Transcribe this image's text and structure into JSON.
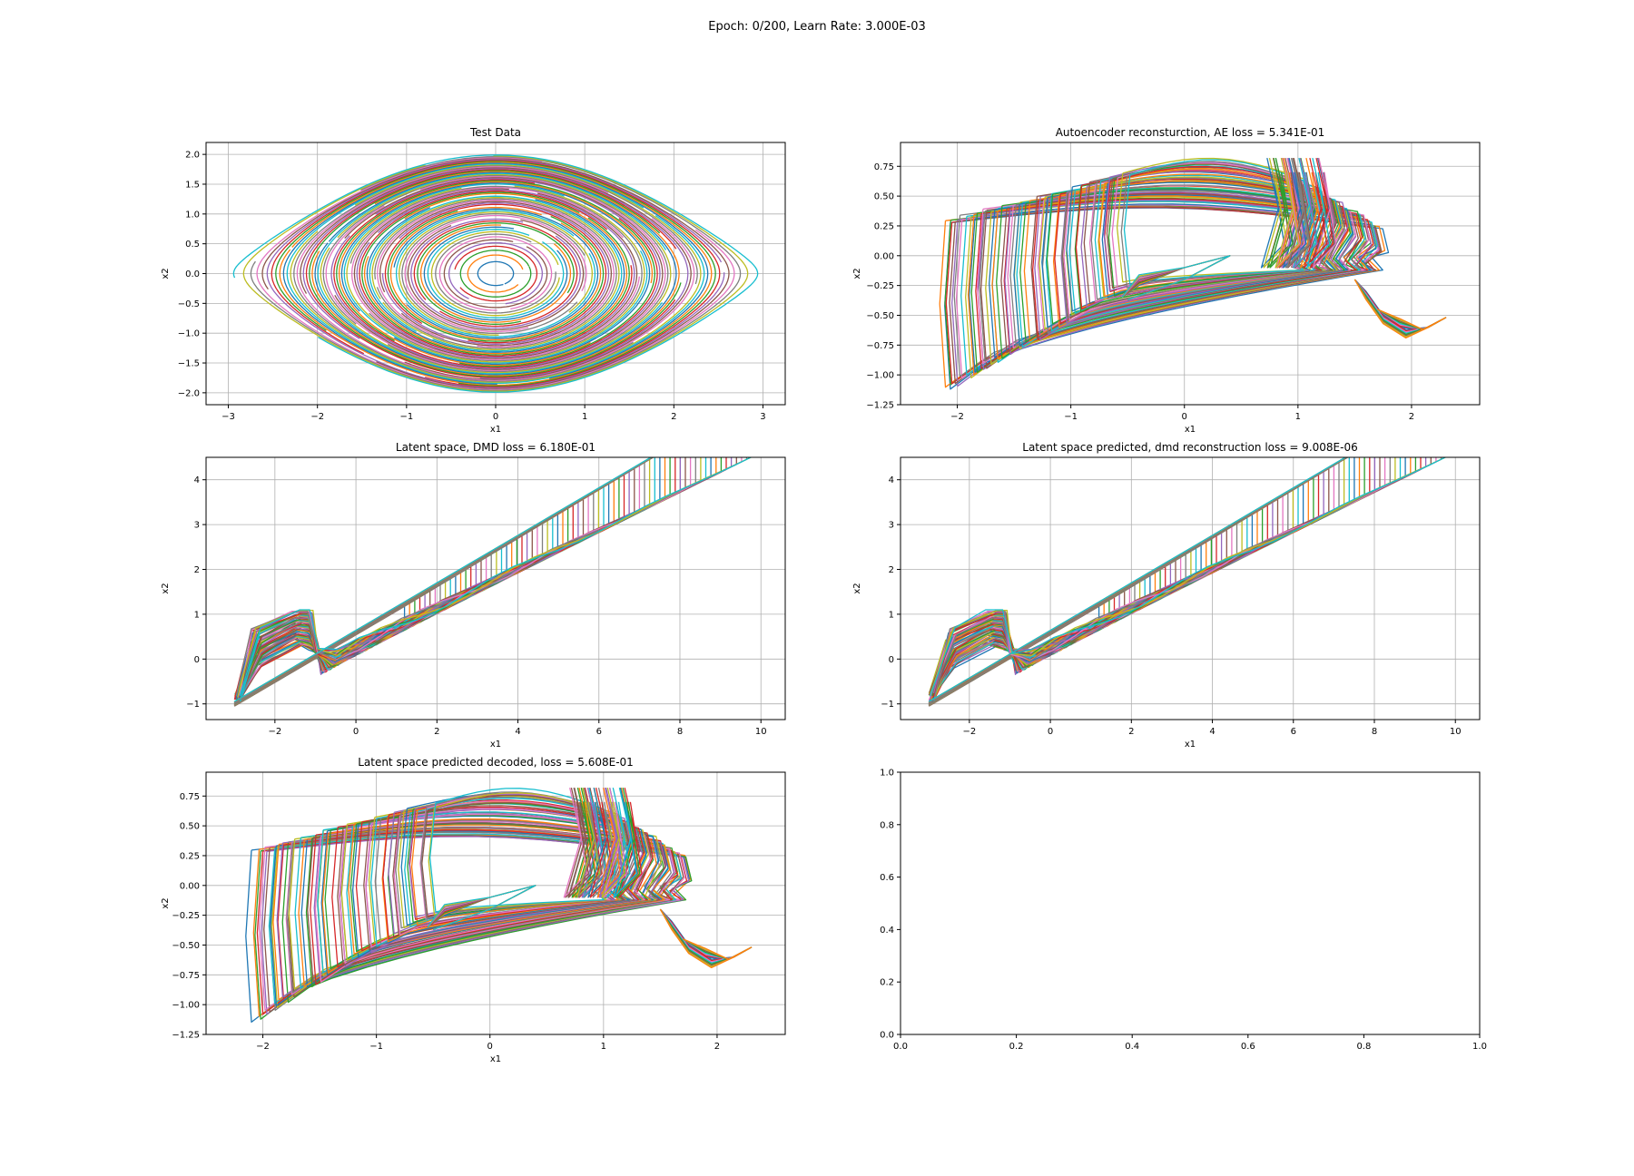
{
  "suptitle": "Epoch: 0/200, Learn Rate: 3.000E-03",
  "palette": [
    "#1f77b4",
    "#ff7f0e",
    "#2ca02c",
    "#d62728",
    "#9467bd",
    "#8c564b",
    "#e377c2",
    "#7f7f7f",
    "#bcbd22",
    "#17becf"
  ],
  "chart_data": [
    {
      "type": "line",
      "title": "Test Data",
      "xlabel": "x1",
      "ylabel": "x2",
      "xlim": [
        -3.25,
        3.25
      ],
      "ylim": [
        -2.2,
        2.2
      ],
      "xticks": [
        -3,
        -2,
        -1,
        0,
        1,
        2,
        3
      ],
      "xtick_labels": [
        "−3",
        "−2",
        "−1",
        "0",
        "1",
        "2",
        "3"
      ],
      "yticks": [
        -2.0,
        -1.5,
        -1.0,
        -0.5,
        0.0,
        0.5,
        1.0,
        1.5,
        2.0
      ],
      "ytick_labels": [
        "−2.0",
        "−1.5",
        "−1.0",
        "−0.5",
        "0.0",
        "0.5",
        "1.0",
        "1.5",
        "2.0"
      ],
      "grid": true,
      "pattern": "pendulum-orbits"
    },
    {
      "type": "line",
      "title": "Autoencoder reconsturction, AE loss = 5.341E-01",
      "xlabel": "x1",
      "ylabel": "x2",
      "xlim": [
        -2.5,
        2.6
      ],
      "ylim": [
        -1.25,
        0.95
      ],
      "xticks": [
        -2,
        -1,
        0,
        1,
        2
      ],
      "xtick_labels": [
        "−2",
        "−1",
        "0",
        "1",
        "2"
      ],
      "yticks": [
        -1.25,
        -1.0,
        -0.75,
        -0.5,
        -0.25,
        0.0,
        0.25,
        0.5,
        0.75
      ],
      "ytick_labels": [
        "−1.25",
        "−1.00",
        "−0.75",
        "−0.50",
        "−0.25",
        "0.00",
        "0.25",
        "0.50",
        "0.75"
      ],
      "grid": true,
      "pattern": "decoded-fish"
    },
    {
      "type": "line",
      "title": "Latent space, DMD loss = 6.180E-01",
      "xlabel": "x1",
      "ylabel": "x2",
      "xlim": [
        -3.7,
        10.6
      ],
      "ylim": [
        -1.35,
        4.5
      ],
      "xticks": [
        -2,
        0,
        2,
        4,
        6,
        8,
        10
      ],
      "xtick_labels": [
        "−2",
        "0",
        "2",
        "4",
        "6",
        "8",
        "10"
      ],
      "yticks": [
        -1,
        0,
        1,
        2,
        3,
        4
      ],
      "ytick_labels": [
        "−1",
        "0",
        "1",
        "2",
        "3",
        "4"
      ],
      "grid": true,
      "pattern": "latent-wedge"
    },
    {
      "type": "line",
      "title": "Latent space predicted, dmd reconstruction loss = 9.008E-06",
      "xlabel": "x1",
      "ylabel": "x2",
      "xlim": [
        -3.7,
        10.6
      ],
      "ylim": [
        -1.35,
        4.5
      ],
      "xticks": [
        -2,
        0,
        2,
        4,
        6,
        8,
        10
      ],
      "xtick_labels": [
        "−2",
        "0",
        "2",
        "4",
        "6",
        "8",
        "10"
      ],
      "yticks": [
        -1,
        0,
        1,
        2,
        3,
        4
      ],
      "ytick_labels": [
        "−1",
        "0",
        "1",
        "2",
        "3",
        "4"
      ],
      "grid": true,
      "pattern": "latent-wedge"
    },
    {
      "type": "line",
      "title": "Latent space predicted decoded, loss = 5.608E-01",
      "xlabel": "x1",
      "ylabel": "x2",
      "xlim": [
        -2.5,
        2.6
      ],
      "ylim": [
        -1.25,
        0.95
      ],
      "xticks": [
        -2,
        -1,
        0,
        1,
        2
      ],
      "xtick_labels": [
        "−2",
        "−1",
        "0",
        "1",
        "2"
      ],
      "yticks": [
        -1.25,
        -1.0,
        -0.75,
        -0.5,
        -0.25,
        0.0,
        0.25,
        0.5,
        0.75
      ],
      "ytick_labels": [
        "−1.25",
        "−1.00",
        "−0.75",
        "−0.50",
        "−0.25",
        "0.00",
        "0.25",
        "0.50",
        "0.75"
      ],
      "grid": true,
      "pattern": "decoded-fish"
    },
    {
      "type": "line",
      "title": "",
      "xlabel": "",
      "ylabel": "",
      "xlim": [
        0,
        1
      ],
      "ylim": [
        0,
        1
      ],
      "xticks": [
        0,
        0.2,
        0.4,
        0.6,
        0.8,
        1.0
      ],
      "xtick_labels": [
        "0.0",
        "0.2",
        "0.4",
        "0.6",
        "0.8",
        "1.0"
      ],
      "yticks": [
        0,
        0.2,
        0.4,
        0.6,
        0.8,
        1.0
      ],
      "ytick_labels": [
        "0.0",
        "0.2",
        "0.4",
        "0.6",
        "0.8",
        "1.0"
      ],
      "grid": false,
      "pattern": "empty"
    }
  ]
}
